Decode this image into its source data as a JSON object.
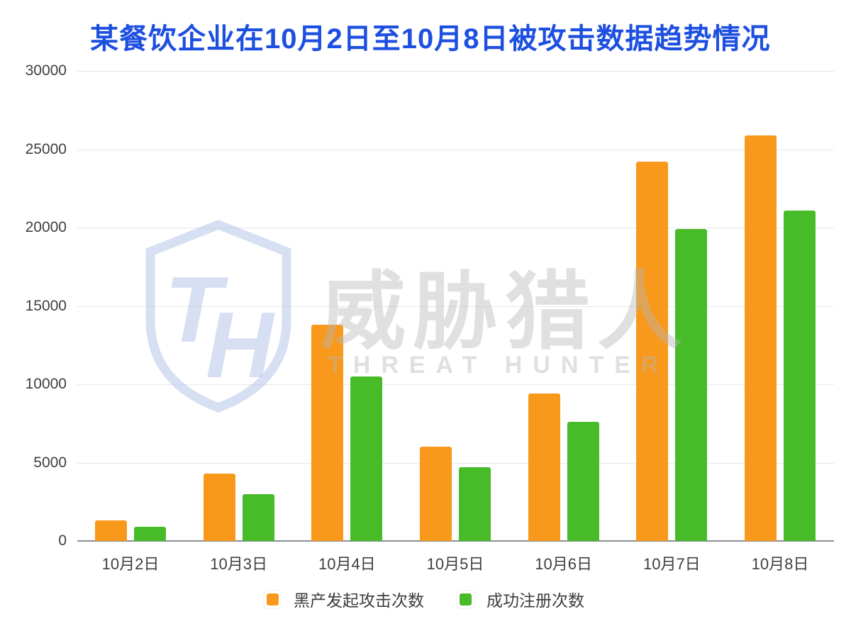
{
  "title": "某餐饮企业在10月2日至10月8日被攻击数据趋势情况",
  "watermark": {
    "monogram": "TH",
    "name_cn": "威胁猎人",
    "name_en": "THREAT HUNTER"
  },
  "colors": {
    "title_blue": "#1d4fe0",
    "attack_orange": "#f8991b",
    "register_green": "#47bb28",
    "gridline": "#e7e7e7",
    "axis_line": "#8a8f94",
    "axis_text": "#3f3f3f"
  },
  "chart_data": {
    "type": "bar",
    "title": "某餐饮企业在10月2日至10月8日被攻击数据趋势情况",
    "categories": [
      "10月2日",
      "10月3日",
      "10月4日",
      "10月5日",
      "10月6日",
      "10月7日",
      "10月8日"
    ],
    "series": [
      {
        "name": "黑产发起攻击次数",
        "color": "#f8991b",
        "values": [
          1300,
          4300,
          13800,
          6000,
          9400,
          24200,
          25900
        ]
      },
      {
        "name": "成功注册次数",
        "color": "#47bb28",
        "values": [
          900,
          3000,
          10500,
          4700,
          7600,
          19900,
          21100
        ]
      }
    ],
    "ylim": [
      0,
      30000
    ],
    "yticks": [
      0,
      5000,
      10000,
      15000,
      20000,
      25000,
      30000
    ],
    "xlabel": "",
    "ylabel": "",
    "grid": "horizontal",
    "legend_position": "bottom"
  }
}
